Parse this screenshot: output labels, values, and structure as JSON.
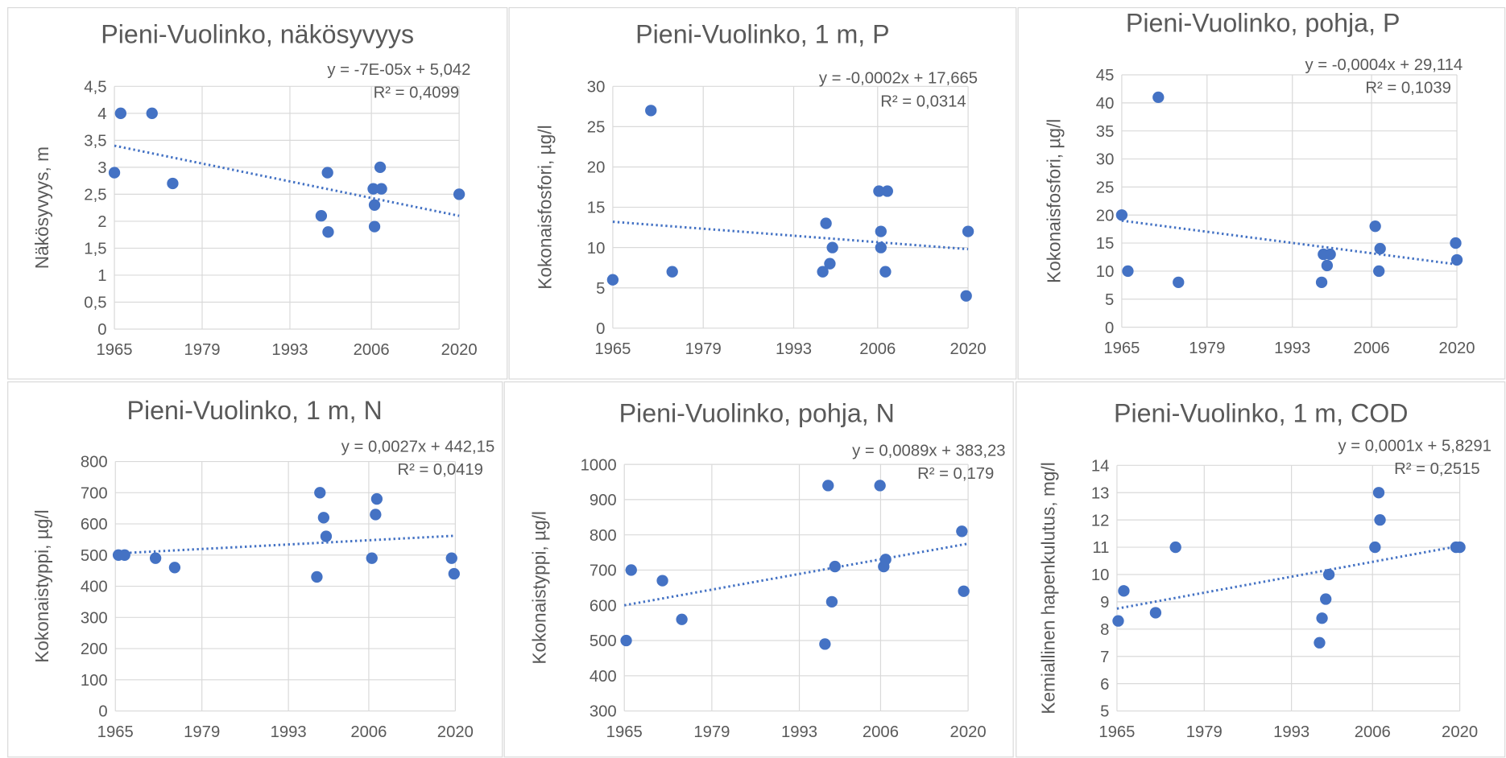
{
  "chart_data": [
    {
      "type": "scatter",
      "title": "Pieni-Vuolinko, näkösyvyys",
      "trend_equation": "y = -7E-05x + 5,042",
      "r_squared": "R² = 0,4099",
      "y_label": "Näkösyvyys, m",
      "color": "#4472c4",
      "grid": true,
      "x": [
        1965,
        1966,
        1971,
        1974.3,
        1998,
        1999,
        1999.1,
        2006.3,
        2006.5,
        2006.5,
        2007.4,
        2007.6,
        2020
      ],
      "values": [
        2.9,
        4,
        4,
        2.7,
        2.1,
        2.9,
        1.8,
        2.6,
        2.3,
        1.9,
        3.0,
        2.6,
        2.5
      ],
      "trend": {
        "x": [
          1965,
          2020
        ],
        "values": [
          3.4,
          2.1
        ]
      },
      "xlim": [
        1965,
        2020
      ],
      "xticks": [
        1965,
        1979,
        1993,
        2006,
        2020
      ],
      "ylim": [
        0,
        4.5
      ],
      "yticks": [
        0,
        {
          "value": 0.5,
          "label": "0,5"
        },
        1,
        {
          "value": 1.5,
          "label": "1,5"
        },
        2,
        {
          "value": 2.5,
          "label": "2,5"
        },
        3,
        {
          "value": 3.5,
          "label": "3,5"
        },
        4,
        {
          "value": 4.5,
          "label": "4,5"
        }
      ]
    },
    {
      "type": "scatter",
      "title": "Pieni-Vuolinko, 1 m, P",
      "trend_equation": "y = -0,0002x + 17,665",
      "r_squared": "R² = 0,0314",
      "y_label": "Kokonaisfosfori, µg/l",
      "color": "#4472c4",
      "grid": true,
      "x": [
        1965,
        1970.9,
        1974.2,
        1997.5,
        1998,
        1998.6,
        1999,
        2006.2,
        2006.5,
        2006.5,
        2007.2,
        2007.5,
        2019.7,
        2020
      ],
      "values": [
        6,
        27,
        7,
        7,
        13,
        8,
        10,
        17,
        12,
        10,
        7,
        17,
        4,
        12
      ],
      "trend": {
        "x": [
          1965,
          2020
        ],
        "values": [
          13.2,
          9.8
        ]
      },
      "xlim": [
        1965,
        2020
      ],
      "xticks": [
        1965,
        1979,
        1993,
        2006,
        2020
      ],
      "ylim": [
        0,
        30
      ],
      "yticks": [
        0,
        5,
        10,
        15,
        20,
        25,
        30
      ]
    },
    {
      "type": "scatter",
      "title": "Pieni-Vuolinko, pohja, P",
      "trend_equation": "y = -0,0004x + 29,114",
      "r_squared": "R² = 0,1039",
      "y_label": "Kokonaisfosfori, µg/l",
      "color": "#4472c4",
      "grid": true,
      "x": [
        1965,
        1966,
        1971,
        1974.3,
        1997.8,
        1998.1,
        1998.7,
        1999.2,
        2006.6,
        2007.2,
        2007.4,
        2019.8,
        2020
      ],
      "values": [
        20,
        10,
        41,
        8,
        8,
        13,
        11,
        13,
        18,
        10,
        14,
        15,
        12
      ],
      "trend": {
        "x": [
          1965,
          2020
        ],
        "values": [
          19,
          11.2
        ]
      },
      "xlim": [
        1965,
        2020
      ],
      "xticks": [
        1965,
        1979,
        1993,
        2006,
        2020
      ],
      "ylim": [
        0,
        45
      ],
      "yticks": [
        0,
        5,
        10,
        15,
        20,
        25,
        30,
        35,
        40,
        45
      ]
    },
    {
      "type": "scatter",
      "title": "Pieni-Vuolinko, 1 m, N",
      "trend_equation": "y = 0,0027x + 442,15",
      "r_squared": "R² = 0,0419",
      "y_label": "Kokonaistyppi, µg/l",
      "color": "#4472c4",
      "grid": true,
      "x": [
        1965.5,
        1966.5,
        1971.5,
        1974.6,
        1997.6,
        1998.1,
        1998.7,
        1999.1,
        2006.5,
        2007.1,
        2007.3,
        2019.4,
        2019.8
      ],
      "values": [
        500,
        500,
        490,
        460,
        430,
        700,
        620,
        560,
        490,
        630,
        680,
        490,
        440
      ],
      "trend": {
        "x": [
          1965,
          2020
        ],
        "values": [
          505,
          562
        ]
      },
      "xlim": [
        1965,
        2020
      ],
      "xticks": [
        1965,
        1979,
        1993,
        2006,
        2020
      ],
      "ylim": [
        0,
        800
      ],
      "yticks": [
        0,
        100,
        200,
        300,
        400,
        500,
        600,
        700,
        800
      ]
    },
    {
      "type": "scatter",
      "title": "Pieni-Vuolinko, pohja, N",
      "trend_equation": "y = 0,0089x + 383,23",
      "r_squared": "R² = 0,179",
      "y_label": "Kokonaistyppi, µg/l",
      "color": "#4472c4",
      "grid": true,
      "x": [
        1965.3,
        1966.1,
        1971.1,
        1974.2,
        1997.1,
        1997.6,
        1998.2,
        1998.7,
        2005.9,
        2006.5,
        2006.8,
        2019,
        2019.3
      ],
      "values": [
        500,
        700,
        670,
        560,
        490,
        940,
        610,
        710,
        940,
        710,
        730,
        810,
        640
      ],
      "trend": {
        "x": [
          1965,
          2020
        ],
        "values": [
          600,
          775
        ]
      },
      "xlim": [
        1965,
        2020
      ],
      "xticks": [
        1965,
        1979,
        1993,
        2006,
        2020
      ],
      "ylim": [
        300,
        1000
      ],
      "yticks": [
        300,
        400,
        500,
        600,
        700,
        800,
        900,
        1000
      ]
    },
    {
      "type": "scatter",
      "title": "Pieni-Vuolinko, 1 m, COD",
      "trend_equation": "y = 0,0001x + 5,8291",
      "r_squared": "R² = 0,2515",
      "y_label": "Kemiallinen hapenkulutus, mg/l",
      "color": "#4472c4",
      "grid": true,
      "x": [
        1965.2,
        1966.1,
        1971.2,
        1974.4,
        1997.5,
        1997.9,
        1998.5,
        1999,
        2006.4,
        2007,
        2007.2,
        2019.4,
        2020
      ],
      "values": [
        8.3,
        9.4,
        8.6,
        11,
        7.5,
        8.4,
        9.1,
        10,
        11,
        13,
        12,
        11,
        11
      ],
      "trend": {
        "x": [
          1965,
          2020
        ],
        "values": [
          8.75,
          11.05
        ]
      },
      "xlim": [
        1965,
        2020
      ],
      "xticks": [
        1965,
        1979,
        1993,
        2006,
        2020
      ],
      "ylim": [
        5,
        14
      ],
      "yticks": [
        5,
        6,
        7,
        8,
        9,
        10,
        11,
        12,
        13,
        14
      ]
    }
  ]
}
